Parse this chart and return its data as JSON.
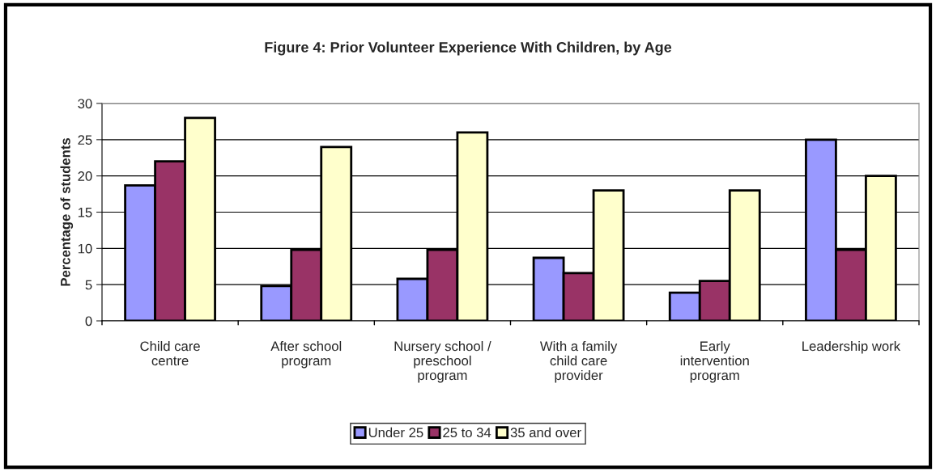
{
  "chart_data": {
    "type": "bar",
    "title": "Figure 4: Prior Volunteer Experience With Children, by Age",
    "ylabel": "Percentage of students",
    "categories": [
      "Child care\ncentre",
      "After school\nprogram",
      "Nursery school /\npreschool\nprogram",
      "With a family\nchild care\nprovider",
      "Early\nintervention\nprogram",
      "Leadership work"
    ],
    "series": [
      {
        "name": "Under 25",
        "color": "#9999ff",
        "values": [
          18.7,
          4.8,
          5.8,
          8.7,
          3.9,
          25
        ]
      },
      {
        "name": "25 to 34",
        "color": "#993366",
        "values": [
          22,
          9.8,
          9.8,
          6.6,
          5.5,
          9.8
        ]
      },
      {
        "name": "35 and over",
        "color": "#ffffcc",
        "values": [
          28,
          24,
          26,
          18,
          18,
          20
        ]
      }
    ],
    "ylim": [
      0,
      30
    ],
    "yticks": [
      0,
      5,
      10,
      15,
      20,
      25,
      30
    ],
    "grid": "y",
    "legend": "bottom"
  }
}
